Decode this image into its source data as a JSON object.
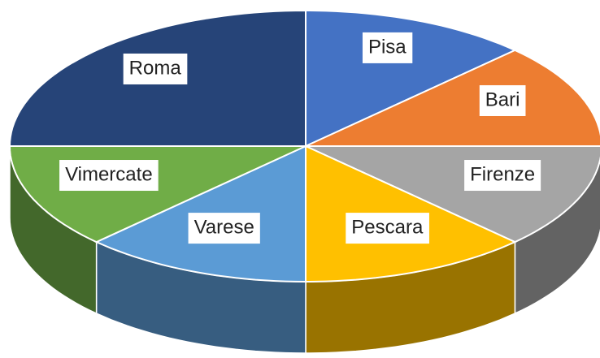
{
  "chart_data": {
    "type": "pie3d",
    "categories": [
      "Pisa",
      "Bari",
      "Firenze",
      "Pescara",
      "Varese",
      "Vimercate",
      "Roma"
    ],
    "values": [
      12.5,
      12.5,
      12.5,
      12.5,
      12.5,
      12.5,
      25
    ],
    "colors": [
      "#4472c4",
      "#ed7d31",
      "#a5a5a5",
      "#ffc000",
      "#5b9bd5",
      "#70ad47",
      "#264478"
    ]
  }
}
